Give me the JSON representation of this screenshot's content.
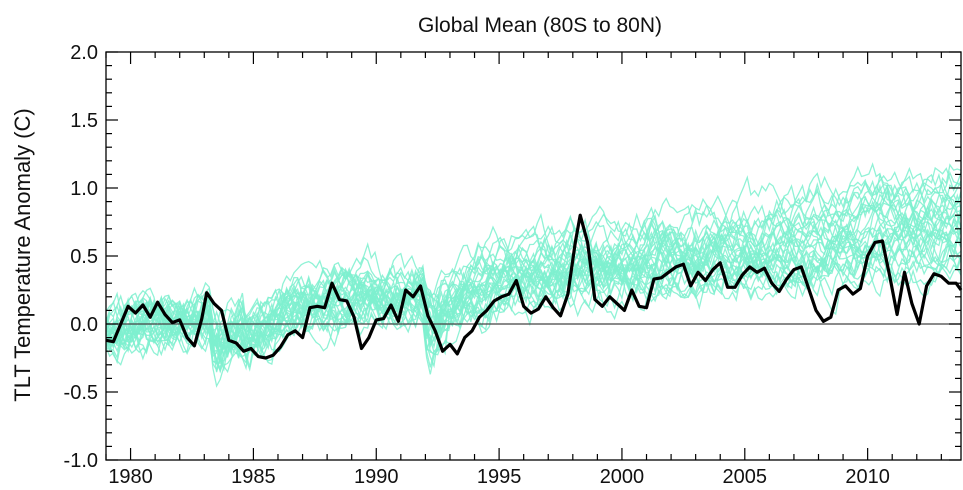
{
  "chart_data": {
    "type": "line",
    "title": "Global Mean (80S to 80N)",
    "xlabel": "",
    "ylabel": "TLT Temperature Anomaly (C)",
    "xlim": [
      1979,
      2013.8
    ],
    "ylim": [
      -1.0,
      2.0
    ],
    "x_ticks": [
      "1980",
      "1985",
      "1990",
      "1995",
      "2000",
      "2005",
      "2010"
    ],
    "y_ticks": [
      "2.0",
      "1.5",
      "1.0",
      "0.5",
      "0.0",
      "-0.5",
      "-1.0"
    ],
    "zero_line": true,
    "grid": false,
    "colors": {
      "observed": "#000000",
      "models": "#7ef0cf",
      "zero_line": "#444444"
    },
    "observed": {
      "x": [
        1979.0,
        1979.3,
        1979.6,
        1979.9,
        1980.2,
        1980.5,
        1980.8,
        1981.1,
        1981.4,
        1981.7,
        1982.0,
        1982.3,
        1982.6,
        1982.9,
        1983.1,
        1983.4,
        1983.7,
        1984.0,
        1984.3,
        1984.6,
        1984.9,
        1985.2,
        1985.5,
        1985.8,
        1986.1,
        1986.4,
        1986.7,
        1987.0,
        1987.3,
        1987.6,
        1987.9,
        1988.2,
        1988.5,
        1988.8,
        1989.1,
        1989.4,
        1989.7,
        1990.0,
        1990.3,
        1990.6,
        1990.9,
        1991.2,
        1991.5,
        1991.8,
        1992.1,
        1992.4,
        1992.7,
        1993.0,
        1993.3,
        1993.6,
        1993.9,
        1994.2,
        1994.5,
        1994.8,
        1995.1,
        1995.4,
        1995.7,
        1996.0,
        1996.3,
        1996.6,
        1996.9,
        1997.2,
        1997.5,
        1997.8,
        1998.1,
        1998.3,
        1998.6,
        1998.9,
        1999.2,
        1999.5,
        1999.8,
        2000.1,
        2000.4,
        2000.7,
        2001.0,
        2001.3,
        2001.6,
        2001.9,
        2002.2,
        2002.5,
        2002.8,
        2003.1,
        2003.4,
        2003.7,
        2004.0,
        2004.3,
        2004.6,
        2004.9,
        2005.2,
        2005.5,
        2005.8,
        2006.1,
        2006.4,
        2006.7,
        2007.0,
        2007.3,
        2007.6,
        2007.9,
        2008.2,
        2008.5,
        2008.8,
        2009.1,
        2009.4,
        2009.7,
        2010.0,
        2010.3,
        2010.6,
        2010.9,
        2011.2,
        2011.5,
        2011.8,
        2012.1,
        2012.4,
        2012.7,
        2013.0,
        2013.3,
        2013.6,
        2013.8
      ],
      "y": [
        -0.12,
        -0.13,
        0.0,
        0.13,
        0.08,
        0.14,
        0.05,
        0.16,
        0.07,
        0.01,
        0.03,
        -0.1,
        -0.16,
        0.04,
        0.23,
        0.15,
        0.1,
        -0.12,
        -0.14,
        -0.2,
        -0.18,
        -0.24,
        -0.25,
        -0.23,
        -0.17,
        -0.08,
        -0.05,
        -0.1,
        0.12,
        0.13,
        0.12,
        0.3,
        0.18,
        0.17,
        0.05,
        -0.18,
        -0.1,
        0.03,
        0.04,
        0.14,
        0.02,
        0.25,
        0.2,
        0.28,
        0.06,
        -0.05,
        -0.2,
        -0.15,
        -0.22,
        -0.1,
        -0.05,
        0.05,
        0.1,
        0.17,
        0.2,
        0.22,
        0.32,
        0.13,
        0.08,
        0.11,
        0.2,
        0.12,
        0.06,
        0.22,
        0.6,
        0.8,
        0.6,
        0.18,
        0.13,
        0.2,
        0.15,
        0.1,
        0.25,
        0.13,
        0.12,
        0.33,
        0.34,
        0.38,
        0.42,
        0.44,
        0.28,
        0.38,
        0.32,
        0.4,
        0.45,
        0.27,
        0.27,
        0.36,
        0.42,
        0.38,
        0.41,
        0.3,
        0.24,
        0.33,
        0.4,
        0.42,
        0.26,
        0.1,
        0.02,
        0.05,
        0.25,
        0.28,
        0.22,
        0.26,
        0.5,
        0.6,
        0.61,
        0.35,
        0.07,
        0.38,
        0.15,
        0.0,
        0.28,
        0.37,
        0.35,
        0.3,
        0.3,
        0.25
      ]
    },
    "models": {
      "count": 32,
      "trend_range": [
        -0.05,
        0.82
      ],
      "noise_amplitude": 0.2,
      "volcanic_dips": [
        {
          "year": 1983.6,
          "depth": -0.25
        },
        {
          "year": 1992.3,
          "depth": -0.28
        },
        {
          "year": 1985.0,
          "depth": -0.08
        }
      ]
    }
  }
}
